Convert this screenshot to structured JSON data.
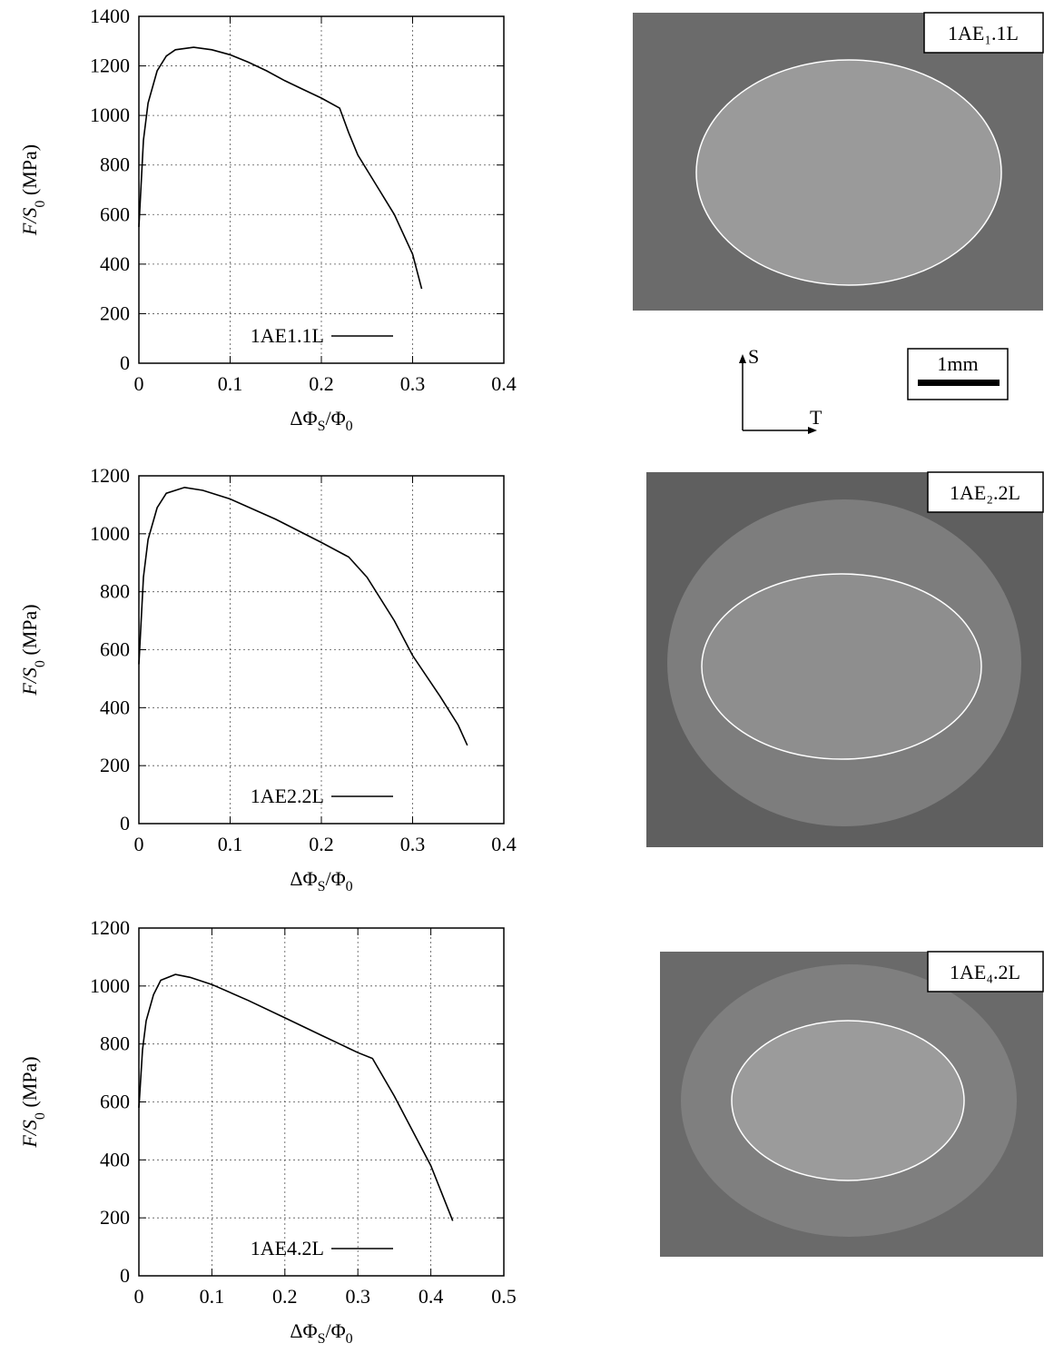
{
  "chart_data": [
    {
      "type": "line",
      "xlabel": [
        "ΔΦ",
        "S",
        "/Φ",
        "0"
      ],
      "ylabel": [
        "F/S",
        "0",
        " (MPa)"
      ],
      "xlim": [
        0,
        0.4
      ],
      "ylim": [
        0,
        1400
      ],
      "xticks": [
        0,
        0.1,
        0.2,
        0.3,
        0.4
      ],
      "yticks": [
        0,
        200,
        400,
        600,
        800,
        1000,
        1200,
        1400
      ],
      "grid": true,
      "x": [
        0,
        0.005,
        0.01,
        0.02,
        0.03,
        0.04,
        0.06,
        0.08,
        0.1,
        0.12,
        0.14,
        0.16,
        0.18,
        0.2,
        0.22,
        0.23,
        0.24,
        0.26,
        0.28,
        0.3,
        0.31
      ],
      "series": [
        {
          "name": "1AE1.1L",
          "color": "#000000",
          "values": [
            550,
            900,
            1050,
            1180,
            1240,
            1265,
            1275,
            1265,
            1245,
            1215,
            1180,
            1140,
            1105,
            1070,
            1030,
            930,
            840,
            720,
            600,
            440,
            300
          ]
        }
      ]
    },
    {
      "type": "line",
      "xlabel": [
        "ΔΦ",
        "S",
        "/Φ",
        "0"
      ],
      "ylabel": [
        "F/S",
        "0",
        " (MPa)"
      ],
      "xlim": [
        0,
        0.4
      ],
      "ylim": [
        0,
        1200
      ],
      "xticks": [
        0,
        0.1,
        0.2,
        0.3,
        0.4
      ],
      "yticks": [
        0,
        200,
        400,
        600,
        800,
        1000,
        1200
      ],
      "grid": true,
      "x": [
        0,
        0.005,
        0.01,
        0.02,
        0.03,
        0.05,
        0.07,
        0.1,
        0.15,
        0.2,
        0.23,
        0.25,
        0.28,
        0.3,
        0.33,
        0.35,
        0.36
      ],
      "series": [
        {
          "name": "1AE2.2L",
          "color": "#000000",
          "values": [
            550,
            850,
            980,
            1090,
            1140,
            1160,
            1150,
            1120,
            1050,
            970,
            920,
            850,
            700,
            580,
            440,
            340,
            270
          ]
        }
      ]
    },
    {
      "type": "line",
      "xlabel": [
        "ΔΦ",
        "S",
        "/Φ",
        "0"
      ],
      "ylabel": [
        "F/S",
        "0",
        " (MPa)"
      ],
      "xlim": [
        0,
        0.5
      ],
      "ylim": [
        0,
        1200
      ],
      "xticks": [
        0,
        0.1,
        0.2,
        0.3,
        0.4,
        0.5
      ],
      "yticks": [
        0,
        200,
        400,
        600,
        800,
        1000,
        1200
      ],
      "grid": true,
      "x": [
        0,
        0.005,
        0.01,
        0.02,
        0.03,
        0.05,
        0.07,
        0.1,
        0.15,
        0.2,
        0.25,
        0.3,
        0.32,
        0.35,
        0.4,
        0.43
      ],
      "series": [
        {
          "name": "1AE4.2L",
          "color": "#000000",
          "values": [
            580,
            780,
            880,
            970,
            1020,
            1040,
            1030,
            1005,
            950,
            890,
            830,
            770,
            750,
            620,
            380,
            190
          ]
        }
      ]
    }
  ],
  "photos": [
    {
      "label": "1AE₁.1L"
    },
    {
      "label": "1AE₂.2L"
    },
    {
      "label": "1AE₄.2L"
    }
  ],
  "orientation": {
    "up": "S",
    "right": "T"
  },
  "scale_bar": "1mm"
}
